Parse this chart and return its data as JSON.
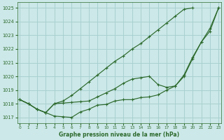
{
  "title": "Graphe pression niveau de la mer (hPa)",
  "bg_color": "#cce8e8",
  "grid_color": "#a8d0d0",
  "line_color": "#2d6a2d",
  "ylim": [
    1016.6,
    1025.4
  ],
  "xlim": [
    -0.3,
    23.3
  ],
  "yticks": [
    1017,
    1018,
    1019,
    1020,
    1021,
    1022,
    1023,
    1024,
    1025
  ],
  "xticks": [
    0,
    1,
    2,
    3,
    4,
    5,
    6,
    7,
    8,
    9,
    10,
    11,
    12,
    13,
    14,
    15,
    16,
    17,
    18,
    19,
    20,
    21,
    22,
    23
  ],
  "series": [
    {
      "x": [
        0,
        1,
        2,
        3,
        4,
        5,
        6,
        7,
        8,
        9,
        10,
        11,
        12,
        13,
        14,
        15,
        16,
        17,
        18,
        19,
        20,
        21,
        22,
        23
      ],
      "y": [
        1018.3,
        1018.0,
        1017.6,
        1017.35,
        1017.1,
        1017.05,
        1017.0,
        1017.4,
        1017.6,
        1017.9,
        1017.95,
        1018.2,
        1018.3,
        1018.3,
        1018.45,
        1018.5,
        1018.65,
        1019.0,
        1019.3,
        1020.0,
        1021.3,
        1022.5,
        1023.3,
        1025.0
      ]
    },
    {
      "x": [
        0,
        1,
        2,
        3,
        4,
        5,
        6,
        7,
        8,
        9,
        10,
        11,
        12,
        13,
        14,
        15,
        16,
        17,
        18,
        19,
        20,
        21,
        22,
        23
      ],
      "y": [
        1018.3,
        1018.0,
        1017.6,
        1017.35,
        1018.0,
        1018.05,
        1018.1,
        1018.15,
        1018.2,
        1018.5,
        1018.8,
        1019.1,
        1019.5,
        1019.8,
        1019.9,
        1020.0,
        1019.4,
        1019.2,
        1019.3,
        1020.1,
        1021.4,
        1022.5,
        1023.5,
        1025.0
      ]
    },
    {
      "x": [
        0,
        1,
        2,
        3,
        4,
        5,
        6,
        7,
        8,
        9,
        10,
        11,
        12,
        13,
        14,
        15,
        16,
        17,
        18,
        19,
        20,
        21,
        22,
        23
      ],
      "y": [
        1018.3,
        1018.0,
        1017.6,
        1017.35,
        1018.0,
        1018.2,
        1018.6,
        1019.1,
        1019.6,
        1020.1,
        1020.6,
        1021.1,
        1021.5,
        1022.0,
        1022.4,
        1022.9,
        1023.4,
        1023.9,
        1024.4,
        1024.9,
        1025.0,
        null,
        null,
        null
      ]
    }
  ]
}
